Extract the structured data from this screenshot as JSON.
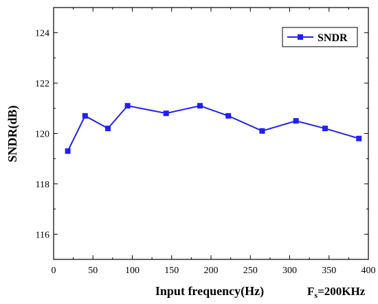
{
  "chart_data": {
    "type": "line",
    "title": "",
    "xlabel": "Input frequency(Hz)",
    "ylabel": "SNDR(dB)",
    "xlim": [
      0,
      400
    ],
    "ylim": [
      115,
      125
    ],
    "xticks": [
      0,
      50,
      100,
      150,
      200,
      250,
      300,
      350,
      400
    ],
    "yticks": [
      116,
      118,
      120,
      122,
      124
    ],
    "grid": false,
    "legend_position": "top-right",
    "series": [
      {
        "name": "SNDR",
        "color": "#1f1fff",
        "marker": "square",
        "x": [
          18,
          40,
          69,
          94,
          143,
          186,
          222,
          265,
          308,
          345,
          388
        ],
        "y": [
          119.3,
          120.7,
          120.2,
          121.1,
          120.8,
          121.1,
          120.7,
          120.1,
          120.5,
          120.2,
          119.8
        ]
      }
    ],
    "annotation": {
      "main": "F",
      "sub": "s",
      "rest": "=200KHz"
    }
  }
}
